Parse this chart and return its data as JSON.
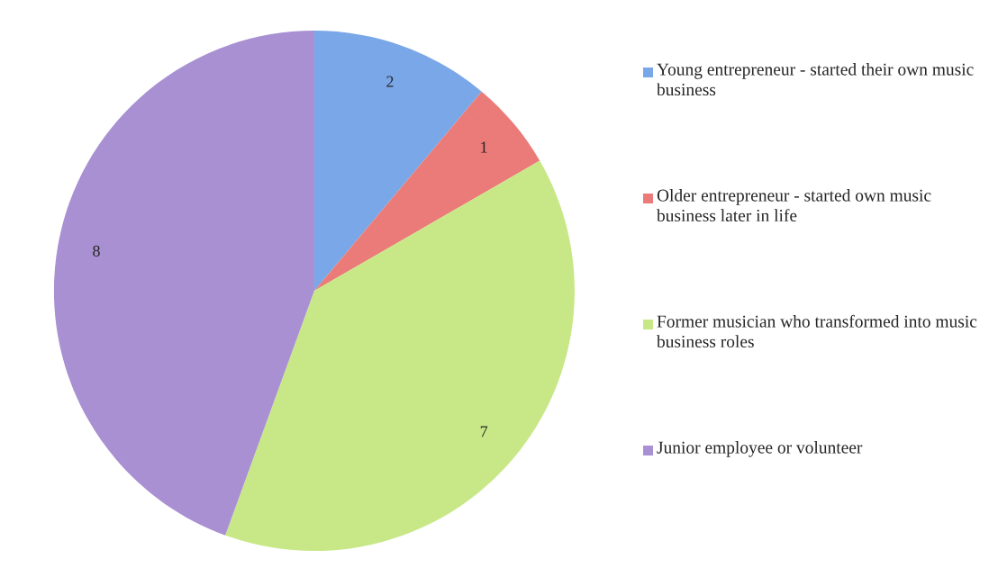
{
  "chart_data": {
    "type": "pie",
    "categories": [
      "Young entrepreneur - started their own music business",
      "Older entrepreneur - started own music business later in life",
      "Former musician who transformed into music business roles",
      "Junior employee or volunteer"
    ],
    "values": [
      2,
      1,
      7,
      8
    ],
    "colors": [
      "#7aa7e8",
      "#ea7b78",
      "#c8e888",
      "#a890d2"
    ],
    "data_labels": true,
    "legend": "right"
  }
}
